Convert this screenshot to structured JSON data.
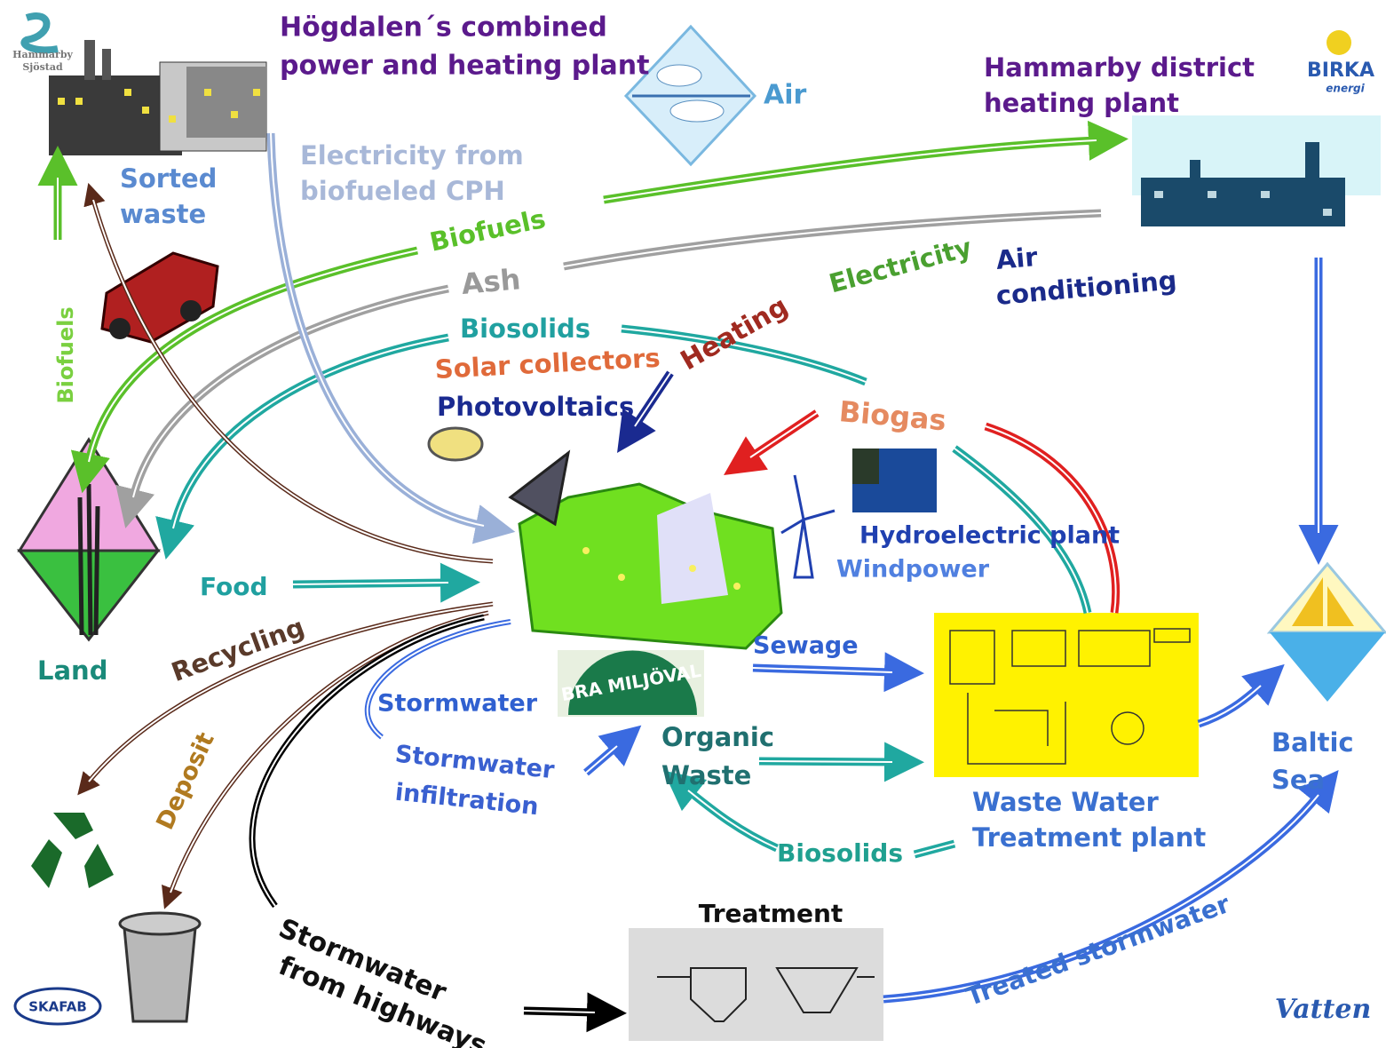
{
  "logos": {
    "hammarby": [
      "Hammarby",
      "Sjöstad"
    ],
    "birka": [
      "BIRKA",
      "energi"
    ],
    "skafab": "SKAFAB",
    "vatten": "Vatten"
  },
  "labels": {
    "hogdalen": [
      "Högdalen´s combined",
      "power and heating plant"
    ],
    "air": "Air",
    "district_heating": [
      "Hammarby district",
      "heating plant"
    ],
    "sorted_waste": [
      "Sorted",
      "waste"
    ],
    "electricity_cph": [
      "Electricity from",
      "biofueled CPH"
    ],
    "biofuels_top": "Biofuels",
    "biofuels_left": "Biofuels",
    "ash": "Ash",
    "electricity": "Electricity",
    "air_conditioning": [
      "Air",
      "conditioning"
    ],
    "biosolids_top": "Biosolids",
    "heating": "Heating",
    "solar": "Solar collectors",
    "photovoltaics": "Photovoltaics",
    "biogas": "Biogas",
    "hydro": "Hydroelectric plant",
    "windpower": "Windpower",
    "food": "Food",
    "land": "Land",
    "recycling": "Recycling",
    "sewage": "Sewage",
    "stormwater": "Stormwater",
    "miljoval": "BRA MILJÖVAL",
    "organic_waste": [
      "Organic",
      "Waste"
    ],
    "infiltration": [
      "Stormwater",
      "infiltration"
    ],
    "deposit": "Deposit",
    "wwtp": [
      "Waste Water",
      "Treatment plant"
    ],
    "baltic": [
      "Baltic",
      "Sea"
    ],
    "biosolids_bottom": "Biosolids",
    "highways": [
      "Stormwater",
      "from highways"
    ],
    "treatment": "Treatment",
    "treated": "Treated stormwater"
  }
}
